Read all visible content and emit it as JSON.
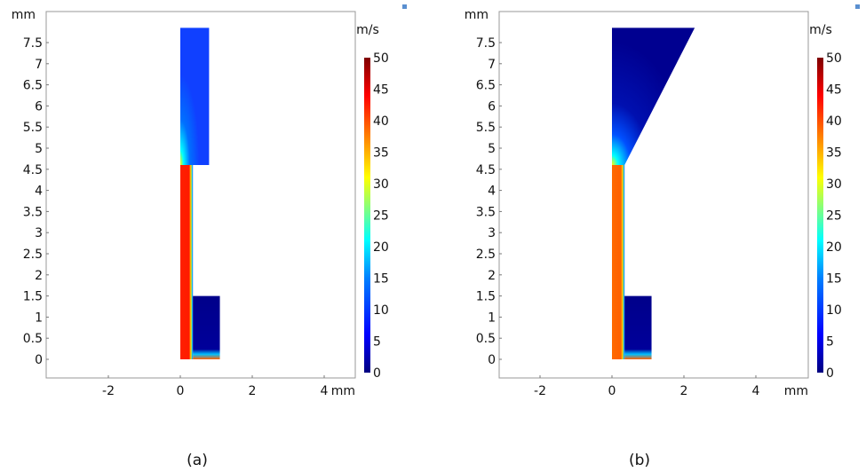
{
  "chart_data": [
    {
      "type": "heatmap",
      "caption": "(a)",
      "xunit": "mm",
      "yunit": "mm",
      "xticks": [
        -2,
        0,
        2,
        4
      ],
      "yticks": [
        0,
        0.5,
        1,
        1.5,
        2,
        2.5,
        3,
        3.5,
        4,
        4.5,
        5,
        5.5,
        6,
        6.5,
        7,
        7.5
      ],
      "geometry": {
        "channel": [
          [
            0,
            0
          ],
          [
            0.35,
            0
          ],
          [
            0.35,
            4.6
          ],
          [
            0,
            4.6
          ]
        ],
        "reservoir": [
          [
            0,
            4.6
          ],
          [
            0.8,
            4.6
          ],
          [
            0.8,
            7.85
          ],
          [
            0,
            7.85
          ]
        ],
        "lower_block": [
          [
            0.35,
            0
          ],
          [
            1.1,
            0
          ],
          [
            1.1,
            1.5
          ],
          [
            0.35,
            1.5
          ]
        ]
      },
      "colorbar": {
        "unit": "m/s",
        "min": 0,
        "max": 50,
        "ticks": [
          0,
          5,
          10,
          15,
          20,
          25,
          30,
          35,
          40,
          45,
          50
        ]
      },
      "field": {
        "channel_speed": 45,
        "reservoir_speed": 8,
        "lower_block_speed": 1
      }
    },
    {
      "type": "heatmap",
      "caption": "(b)",
      "xunit": "mm",
      "yunit": "mm",
      "xticks": [
        -2,
        0,
        2,
        4
      ],
      "yticks": [
        0,
        0.5,
        1,
        1.5,
        2,
        2.5,
        3,
        3.5,
        4,
        4.5,
        5,
        5.5,
        6,
        6.5,
        7,
        7.5
      ],
      "geometry": {
        "channel": [
          [
            0,
            0
          ],
          [
            0.35,
            0
          ],
          [
            0.35,
            4.6
          ],
          [
            0,
            4.6
          ]
        ],
        "reservoir": [
          [
            0,
            4.6
          ],
          [
            0.35,
            4.6
          ],
          [
            2.3,
            7.85
          ],
          [
            0,
            7.85
          ]
        ],
        "lower_block": [
          [
            0.35,
            0
          ],
          [
            1.1,
            0
          ],
          [
            1.1,
            1.5
          ],
          [
            0.35,
            1.5
          ]
        ]
      },
      "colorbar": {
        "unit": "m/s",
        "min": 0,
        "max": 50,
        "ticks": [
          0,
          5,
          10,
          15,
          20,
          25,
          30,
          35,
          40,
          45,
          50
        ]
      },
      "field": {
        "channel_speed": 38,
        "reservoir_speed": 2,
        "lower_block_speed": 1
      }
    }
  ],
  "colors": {
    "colormap": [
      "#00007f",
      "#0000ff",
      "#0080ff",
      "#00ffff",
      "#80ff80",
      "#ffff00",
      "#ff8000",
      "#ff0000",
      "#7f0000"
    ]
  }
}
